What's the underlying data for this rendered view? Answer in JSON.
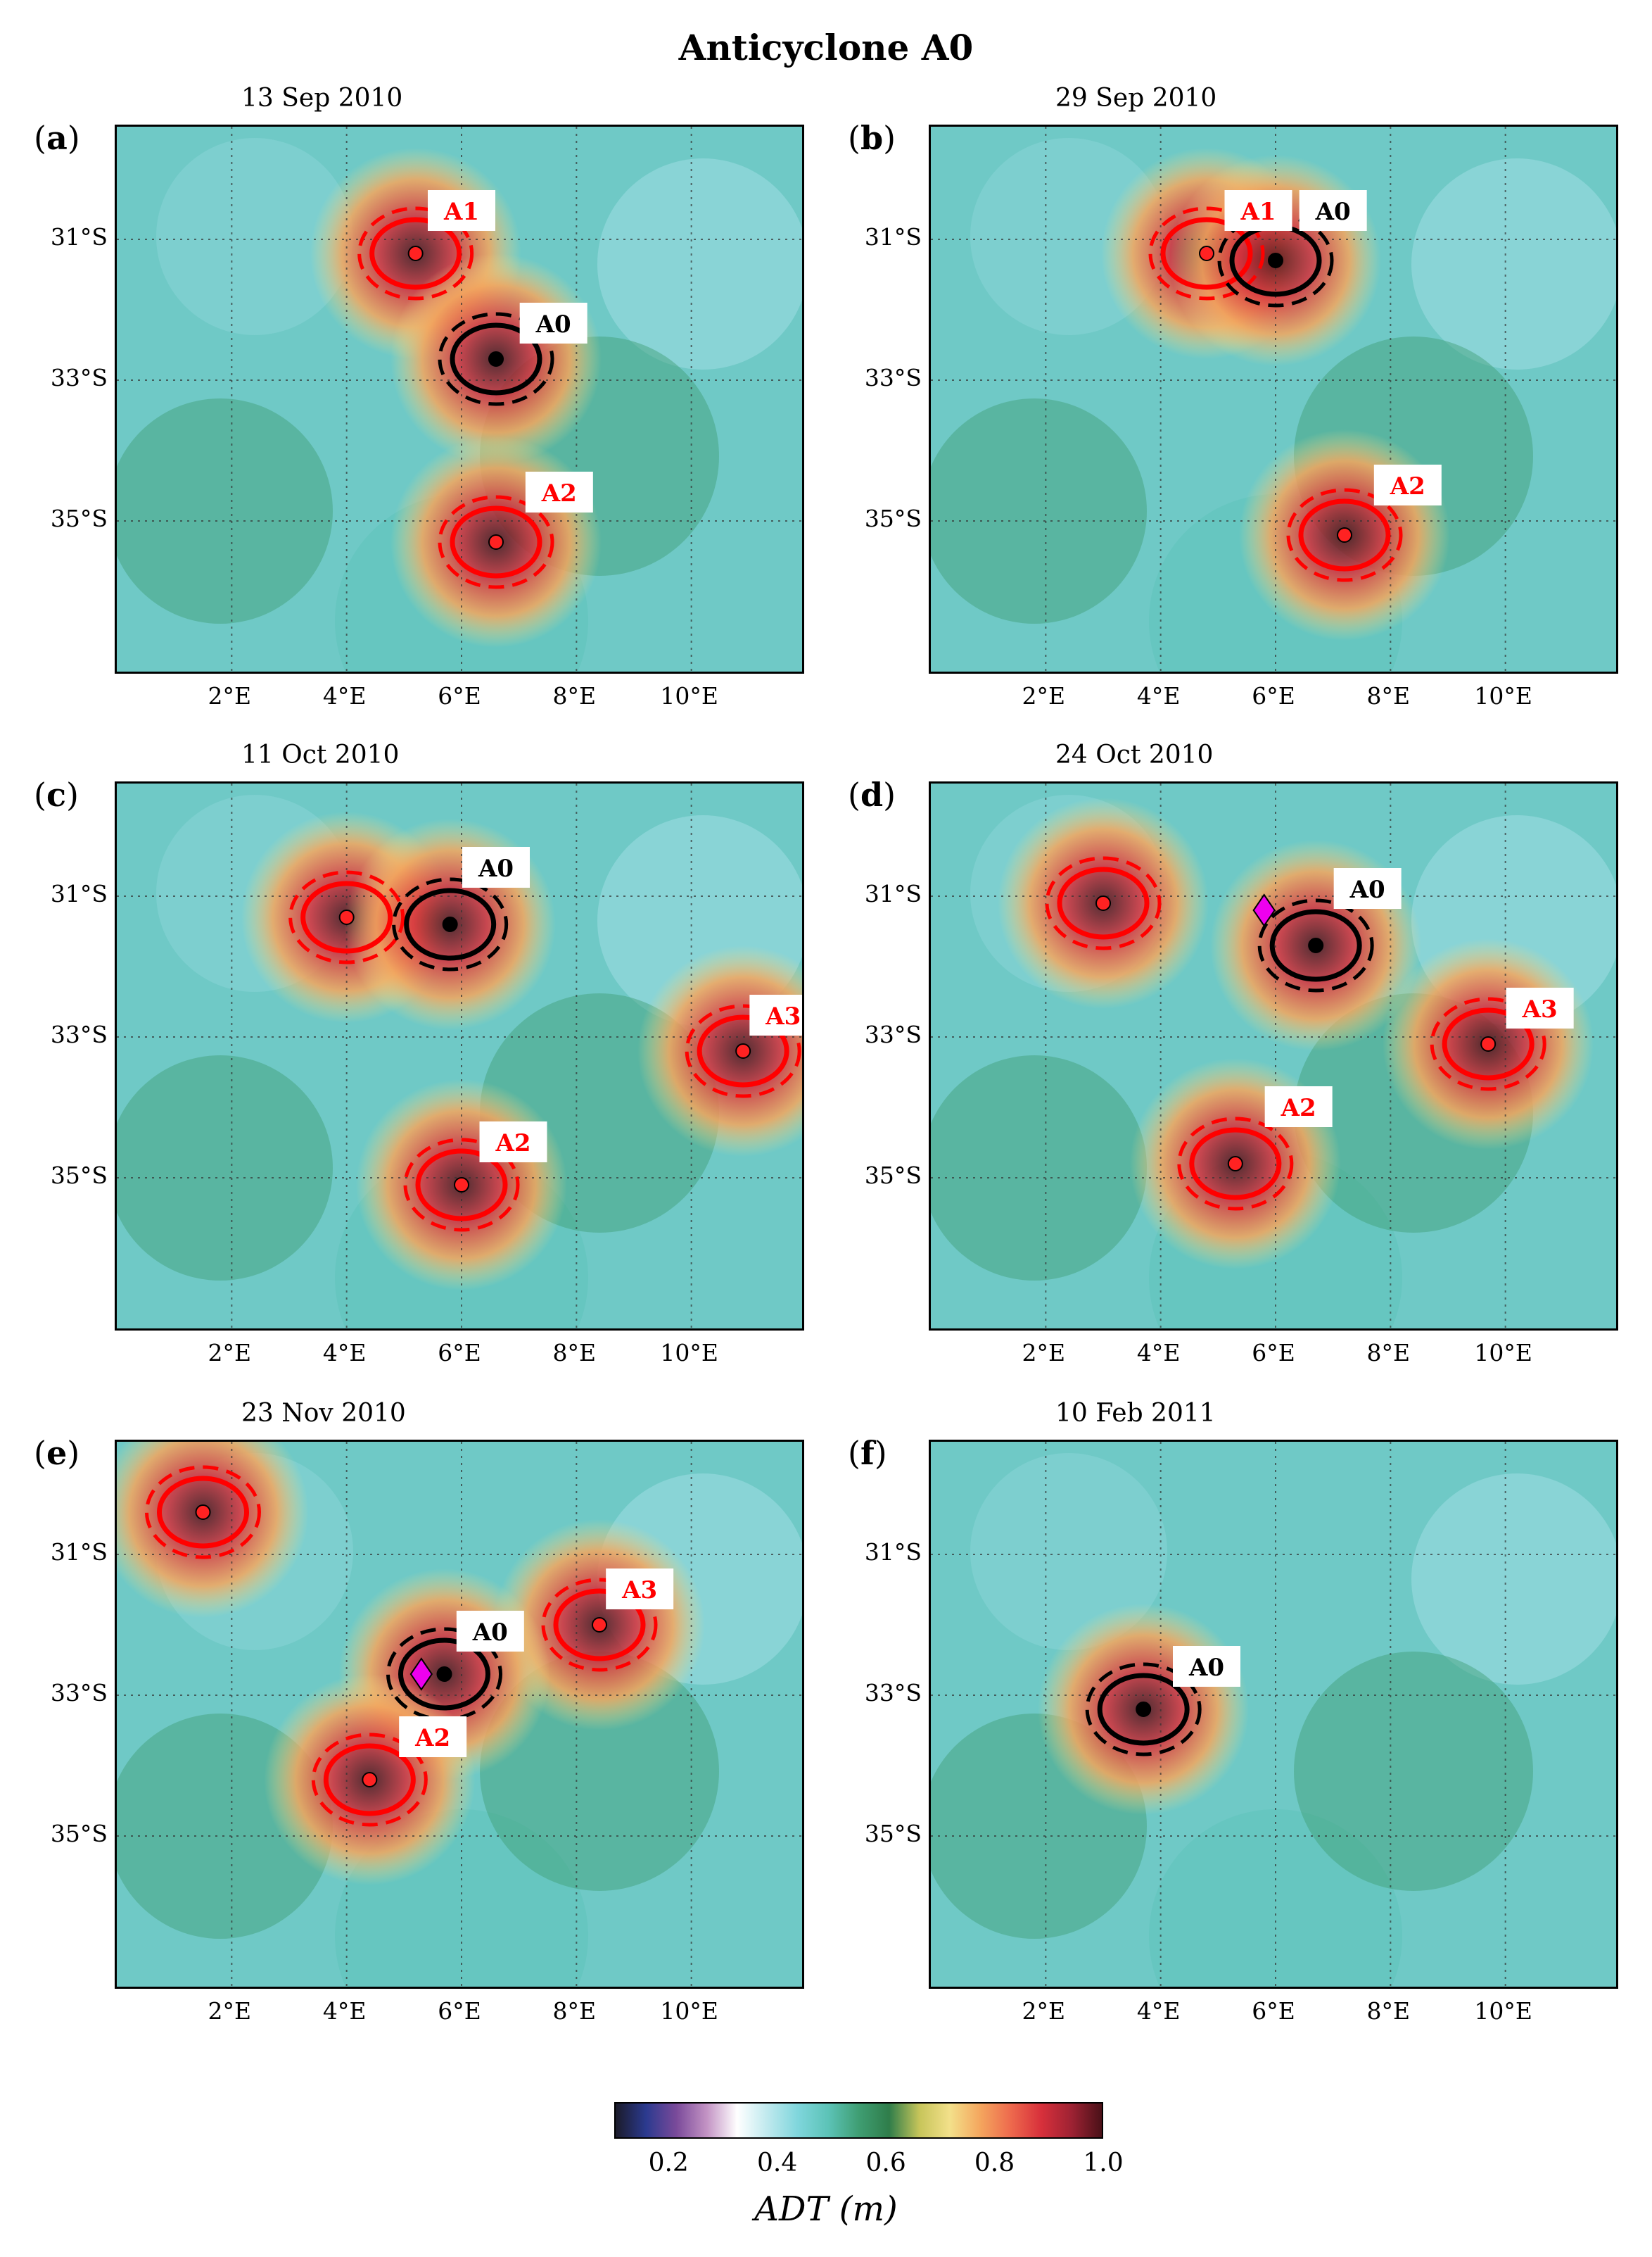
{
  "figure": {
    "title": "Anticyclone A0",
    "colorbar": {
      "label": "ADT (m)",
      "ticks": [
        "0.2",
        "0.4",
        "0.6",
        "0.8",
        "1.0"
      ],
      "range": [
        0.1,
        1.0
      ],
      "colormap": [
        "#1b1b2a",
        "#2b3a8f",
        "#7a4a9a",
        "#c393c4",
        "#ffffff",
        "#bfe9ee",
        "#7fd6dc",
        "#5cc3b7",
        "#3f9e73",
        "#2f7d4a",
        "#c7c55a",
        "#f3e08a",
        "#f4a65e",
        "#ee6a4d",
        "#d8303b",
        "#9e2233",
        "#4a1118"
      ]
    },
    "axes": {
      "y_ticks": [
        "31°S",
        "33°S",
        "35°S"
      ],
      "x_ticks": [
        "2°E",
        "4°E",
        "6°E",
        "8°E",
        "10°E"
      ],
      "lon_range": [
        0,
        12
      ],
      "lat_range": [
        -37.2,
        -29.4
      ]
    },
    "colors": {
      "cyclone_track": "#000000",
      "anticyclone_track": "#ff0000",
      "marker_magenta": "#ee00ee"
    },
    "panels": [
      {
        "letter": "a",
        "date": "13 Sep 2010",
        "labels": [
          {
            "text": "A1",
            "color": "red",
            "lon": 6.0,
            "lat": -30.6
          },
          {
            "text": "A0",
            "color": "black",
            "lon": 7.6,
            "lat": -32.2
          },
          {
            "text": "A2",
            "color": "red",
            "lon": 7.7,
            "lat": -34.6
          }
        ],
        "eddies": [
          {
            "lon": 5.2,
            "lat": -31.2,
            "kind": "A"
          },
          {
            "lon": 6.6,
            "lat": -32.7,
            "kind": "C"
          },
          {
            "lon": 6.6,
            "lat": -35.3,
            "kind": "A"
          }
        ],
        "magenta": false
      },
      {
        "letter": "b",
        "date": "29 Sep 2010",
        "labels": [
          {
            "text": "A1",
            "color": "red",
            "lon": 5.7,
            "lat": -30.6
          },
          {
            "text": "A0",
            "color": "black",
            "lon": 7.0,
            "lat": -30.6
          },
          {
            "text": "A2",
            "color": "red",
            "lon": 8.3,
            "lat": -34.5
          }
        ],
        "eddies": [
          {
            "lon": 4.8,
            "lat": -31.2,
            "kind": "A"
          },
          {
            "lon": 6.0,
            "lat": -31.3,
            "kind": "C"
          },
          {
            "lon": 7.2,
            "lat": -35.2,
            "kind": "A"
          }
        ],
        "magenta": false
      },
      {
        "letter": "c",
        "date": "11 Oct 2010",
        "labels": [
          {
            "text": "A0",
            "color": "black",
            "lon": 6.6,
            "lat": -30.6
          },
          {
            "text": "A3",
            "color": "red",
            "lon": 11.6,
            "lat": -32.7
          },
          {
            "text": "A2",
            "color": "red",
            "lon": 6.9,
            "lat": -34.5
          }
        ],
        "eddies": [
          {
            "lon": 4.0,
            "lat": -31.3,
            "kind": "A"
          },
          {
            "lon": 5.8,
            "lat": -31.4,
            "kind": "C"
          },
          {
            "lon": 10.9,
            "lat": -33.2,
            "kind": "A"
          },
          {
            "lon": 6.0,
            "lat": -35.1,
            "kind": "A"
          }
        ],
        "magenta": false
      },
      {
        "letter": "d",
        "date": "24 Oct 2010",
        "labels": [
          {
            "text": "A0",
            "color": "black",
            "lon": 7.6,
            "lat": -30.9
          },
          {
            "text": "A3",
            "color": "red",
            "lon": 10.6,
            "lat": -32.6
          },
          {
            "text": "A2",
            "color": "red",
            "lon": 6.4,
            "lat": -34.0
          }
        ],
        "eddies": [
          {
            "lon": 3.0,
            "lat": -31.1,
            "kind": "A"
          },
          {
            "lon": 6.7,
            "lat": -31.7,
            "kind": "C"
          },
          {
            "lon": 9.7,
            "lat": -33.1,
            "kind": "A"
          },
          {
            "lon": 5.3,
            "lat": -34.8,
            "kind": "A"
          }
        ],
        "magenta": true,
        "magenta_pos": {
          "lon": 5.8,
          "lat": -31.2
        }
      },
      {
        "letter": "e",
        "date": "23 Nov 2010",
        "labels": [
          {
            "text": "A3",
            "color": "red",
            "lon": 9.1,
            "lat": -31.5
          },
          {
            "text": "A0",
            "color": "black",
            "lon": 6.5,
            "lat": -32.1
          },
          {
            "text": "A2",
            "color": "red",
            "lon": 5.5,
            "lat": -33.6
          }
        ],
        "eddies": [
          {
            "lon": 1.5,
            "lat": -30.4,
            "kind": "A"
          },
          {
            "lon": 8.4,
            "lat": -32.0,
            "kind": "A"
          },
          {
            "lon": 5.7,
            "lat": -32.7,
            "kind": "C"
          },
          {
            "lon": 4.4,
            "lat": -34.2,
            "kind": "A"
          }
        ],
        "magenta": true,
        "magenta_pos": {
          "lon": 5.3,
          "lat": -32.7
        }
      },
      {
        "letter": "f",
        "date": "10 Feb 2011",
        "labels": [
          {
            "text": "A0",
            "color": "black",
            "lon": 4.8,
            "lat": -32.6
          }
        ],
        "eddies": [
          {
            "lon": 3.7,
            "lat": -33.2,
            "kind": "C"
          }
        ],
        "magenta": false
      }
    ]
  }
}
